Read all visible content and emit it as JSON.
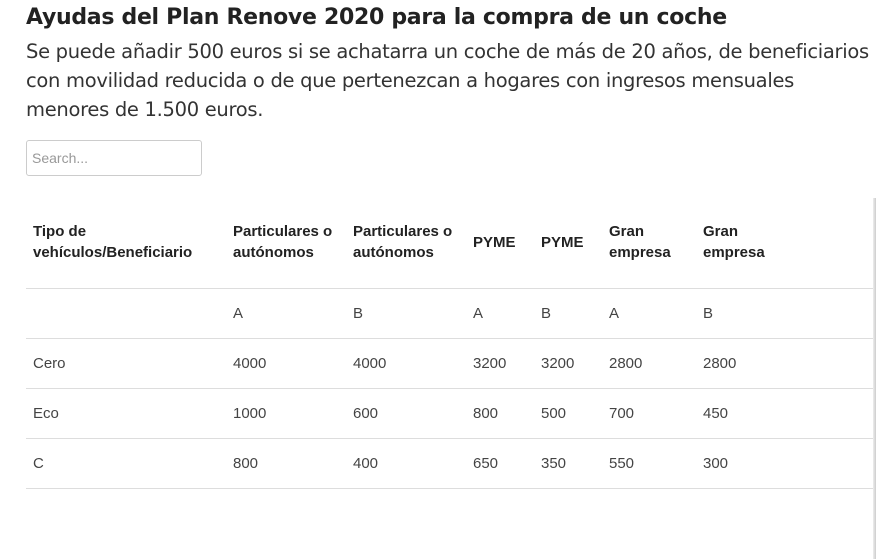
{
  "header": {
    "title": "Ayudas del Plan Renove 2020 para la compra de un coche",
    "subtitle": "Se puede añadir 500 euros si se achatarra un coche de más de 20 años, de beneficiarios con movilidad reducida o de que pertenezcan a hogares con ingresos mensuales menores de 1.500 euros."
  },
  "search": {
    "placeholder": "Search..."
  },
  "table": {
    "columns": [
      "Tipo de vehículos/Beneficiario",
      "Particulares o autónomos",
      "Particulares o autónomos",
      "PYME",
      "PYME",
      "Gran empresa",
      "Gran empresa"
    ],
    "rows": [
      [
        null,
        "A",
        "B",
        "A",
        "B",
        "A",
        "B"
      ],
      [
        "Cero",
        4000,
        4000,
        3200,
        3200,
        2800,
        2800
      ],
      [
        "Eco",
        1000,
        600,
        800,
        500,
        700,
        450
      ],
      [
        "C",
        800,
        400,
        650,
        350,
        550,
        300
      ]
    ]
  }
}
